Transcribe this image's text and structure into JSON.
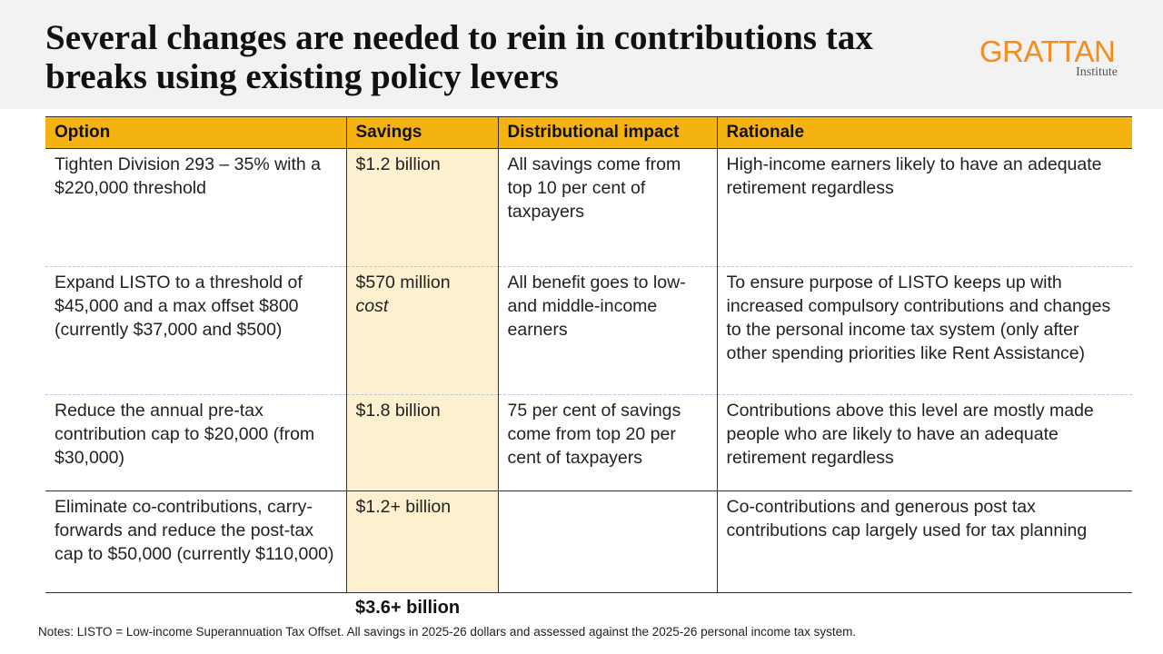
{
  "title": "Several changes are needed to rein in contributions tax breaks using existing policy levers",
  "logo": {
    "brand": "GRATTAN",
    "sub": "Institute",
    "color": "#f68b1f"
  },
  "table": {
    "headers": [
      "Option",
      "Savings",
      "Distributional impact",
      "Rationale"
    ],
    "rows": [
      {
        "option": "Tighten Division 293 – 35% with a $220,000 threshold",
        "savings": "$1.2 billion",
        "savings_note": "",
        "impact": "All savings come from top 10 per cent of taxpayers",
        "rationale": "High-income earners likely to have an adequate retirement regardless"
      },
      {
        "option": "Expand LISTO to a threshold of $45,000 and a max offset $800 (currently $37,000 and $500)",
        "savings": "$570 million",
        "savings_note": "cost",
        "impact": "All benefit goes to low- and middle-income earners",
        "rationale": "To ensure purpose of LISTO keeps up with increased compulsory contributions and changes to the personal income tax system (only after other spending priorities like Rent Assistance)"
      },
      {
        "option": "Reduce the annual pre-tax contribution cap to $20,000 (from $30,000)",
        "savings": "$1.8 billion",
        "savings_note": "",
        "impact": "75 per cent of savings come from top 20 per cent of taxpayers",
        "rationale": "Contributions above this level are mostly made people who are likely to have an adequate retirement regardless"
      },
      {
        "option": "Eliminate co-contributions, carry-forwards and reduce the post-tax cap to $50,000 (currently $110,000)",
        "savings": "$1.2+ billion",
        "savings_note": "",
        "impact": "",
        "rationale": "Co-contributions and generous post tax contributions cap largely used for tax planning"
      }
    ],
    "total": "$3.6+ billion"
  },
  "notes": "Notes: LISTO = Low-income Superannuation Tax Offset. All savings in 2025-26 dollars and assessed against the 2025-26 personal income tax system.",
  "colors": {
    "header": "#f5b312",
    "savings_column": "#fdf0cf"
  }
}
